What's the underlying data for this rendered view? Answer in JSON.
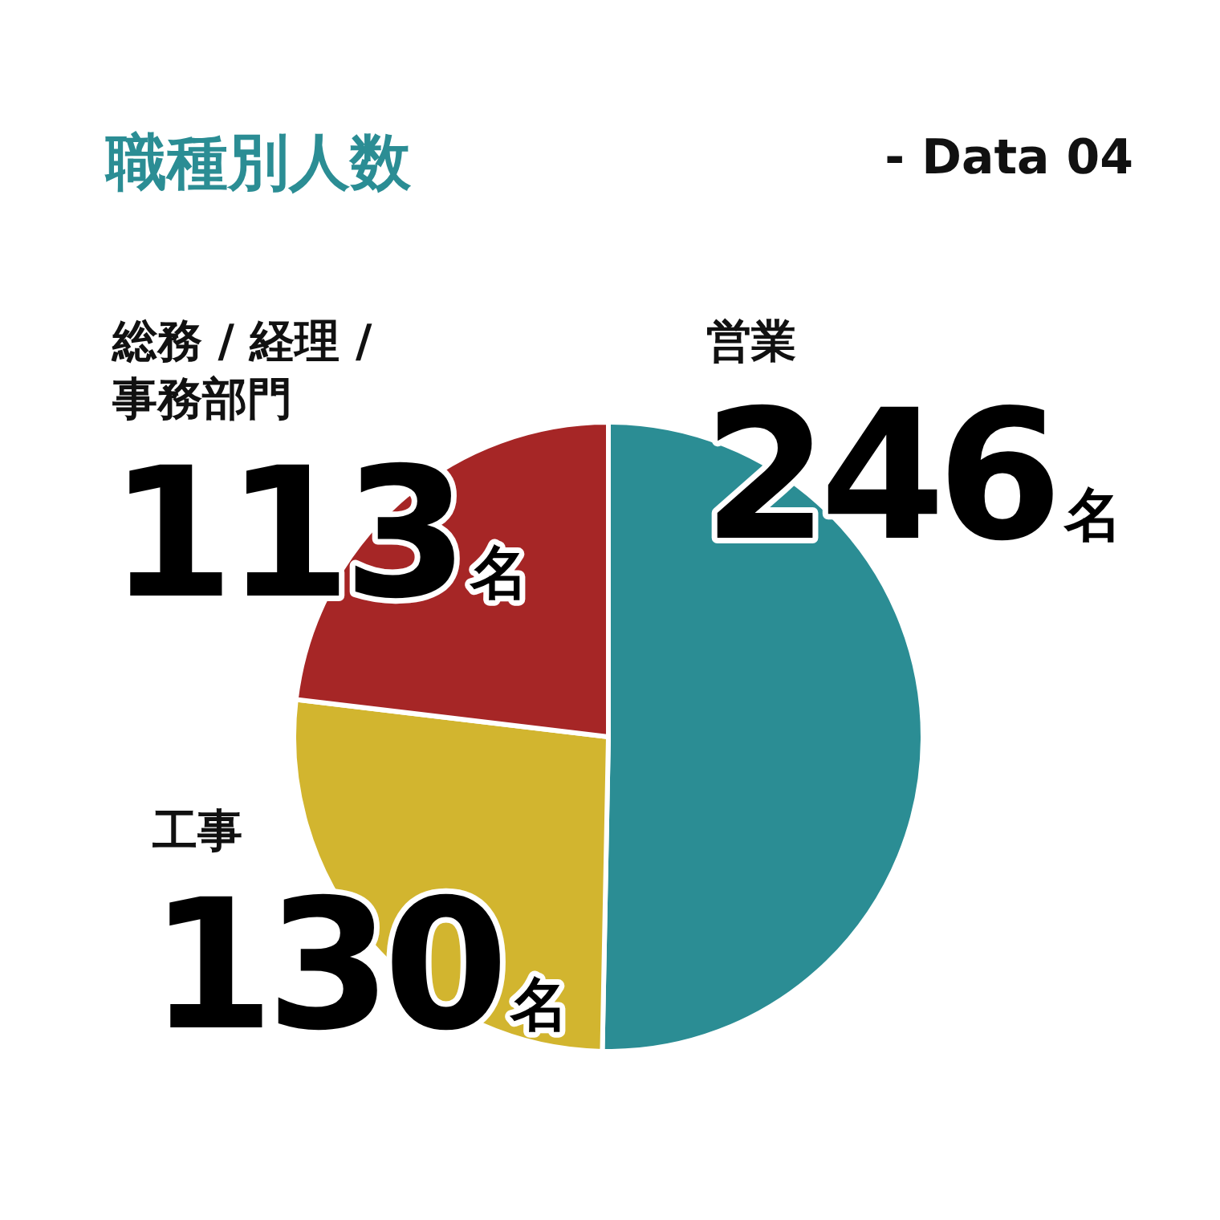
{
  "chart_data": {
    "type": "pie",
    "title": "職種別人数",
    "subtitle": "- Data 04",
    "categories": [
      "営業",
      "工事",
      "総務 / 経理 / 事務部門"
    ],
    "values": [
      246,
      130,
      113
    ],
    "colors": [
      "#2b8d94",
      "#d2b52f",
      "#a62626"
    ],
    "value_labels": [
      "246名",
      "130名",
      "113名"
    ]
  }
}
